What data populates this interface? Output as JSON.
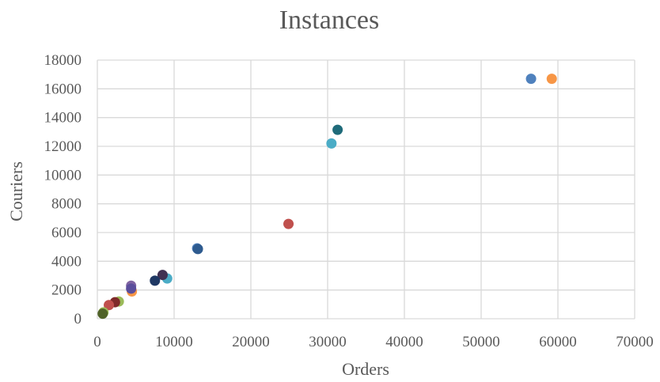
{
  "chart_data": {
    "type": "scatter",
    "title": "Instances",
    "xlabel": "Orders",
    "ylabel": "Couriers",
    "xlim": [
      0,
      70000
    ],
    "ylim": [
      0,
      18000
    ],
    "xticks": [
      0,
      10000,
      20000,
      30000,
      40000,
      50000,
      60000,
      70000
    ],
    "yticks": [
      0,
      2000,
      4000,
      6000,
      8000,
      10000,
      12000,
      14000,
      16000,
      18000
    ],
    "grid": true,
    "legend": "none",
    "points": [
      {
        "x": 56500,
        "y": 16700,
        "color": "#4f81bd"
      },
      {
        "x": 59200,
        "y": 16700,
        "color": "#f79646"
      },
      {
        "x": 31300,
        "y": 13150,
        "color": "#1f6b7a"
      },
      {
        "x": 30500,
        "y": 12200,
        "color": "#4bacc6"
      },
      {
        "x": 24900,
        "y": 6600,
        "color": "#c0504d"
      },
      {
        "x": 13000,
        "y": 4900,
        "color": "#4f81bd"
      },
      {
        "x": 13100,
        "y": 4850,
        "color": "#2e5b8f"
      },
      {
        "x": 9100,
        "y": 2800,
        "color": "#4bacc6"
      },
      {
        "x": 8500,
        "y": 3050,
        "color": "#403152"
      },
      {
        "x": 7500,
        "y": 2650,
        "color": "#1f3864"
      },
      {
        "x": 4500,
        "y": 1900,
        "color": "#f79646"
      },
      {
        "x": 4400,
        "y": 2300,
        "color": "#8064a2"
      },
      {
        "x": 4400,
        "y": 2100,
        "color": "#5b4e9c"
      },
      {
        "x": 2800,
        "y": 1200,
        "color": "#9bbb59"
      },
      {
        "x": 2300,
        "y": 1150,
        "color": "#7f2a2a"
      },
      {
        "x": 1500,
        "y": 950,
        "color": "#c0504d"
      },
      {
        "x": 800,
        "y": 450,
        "color": "#9bbb59"
      },
      {
        "x": 700,
        "y": 350,
        "color": "#4f6228"
      }
    ]
  }
}
